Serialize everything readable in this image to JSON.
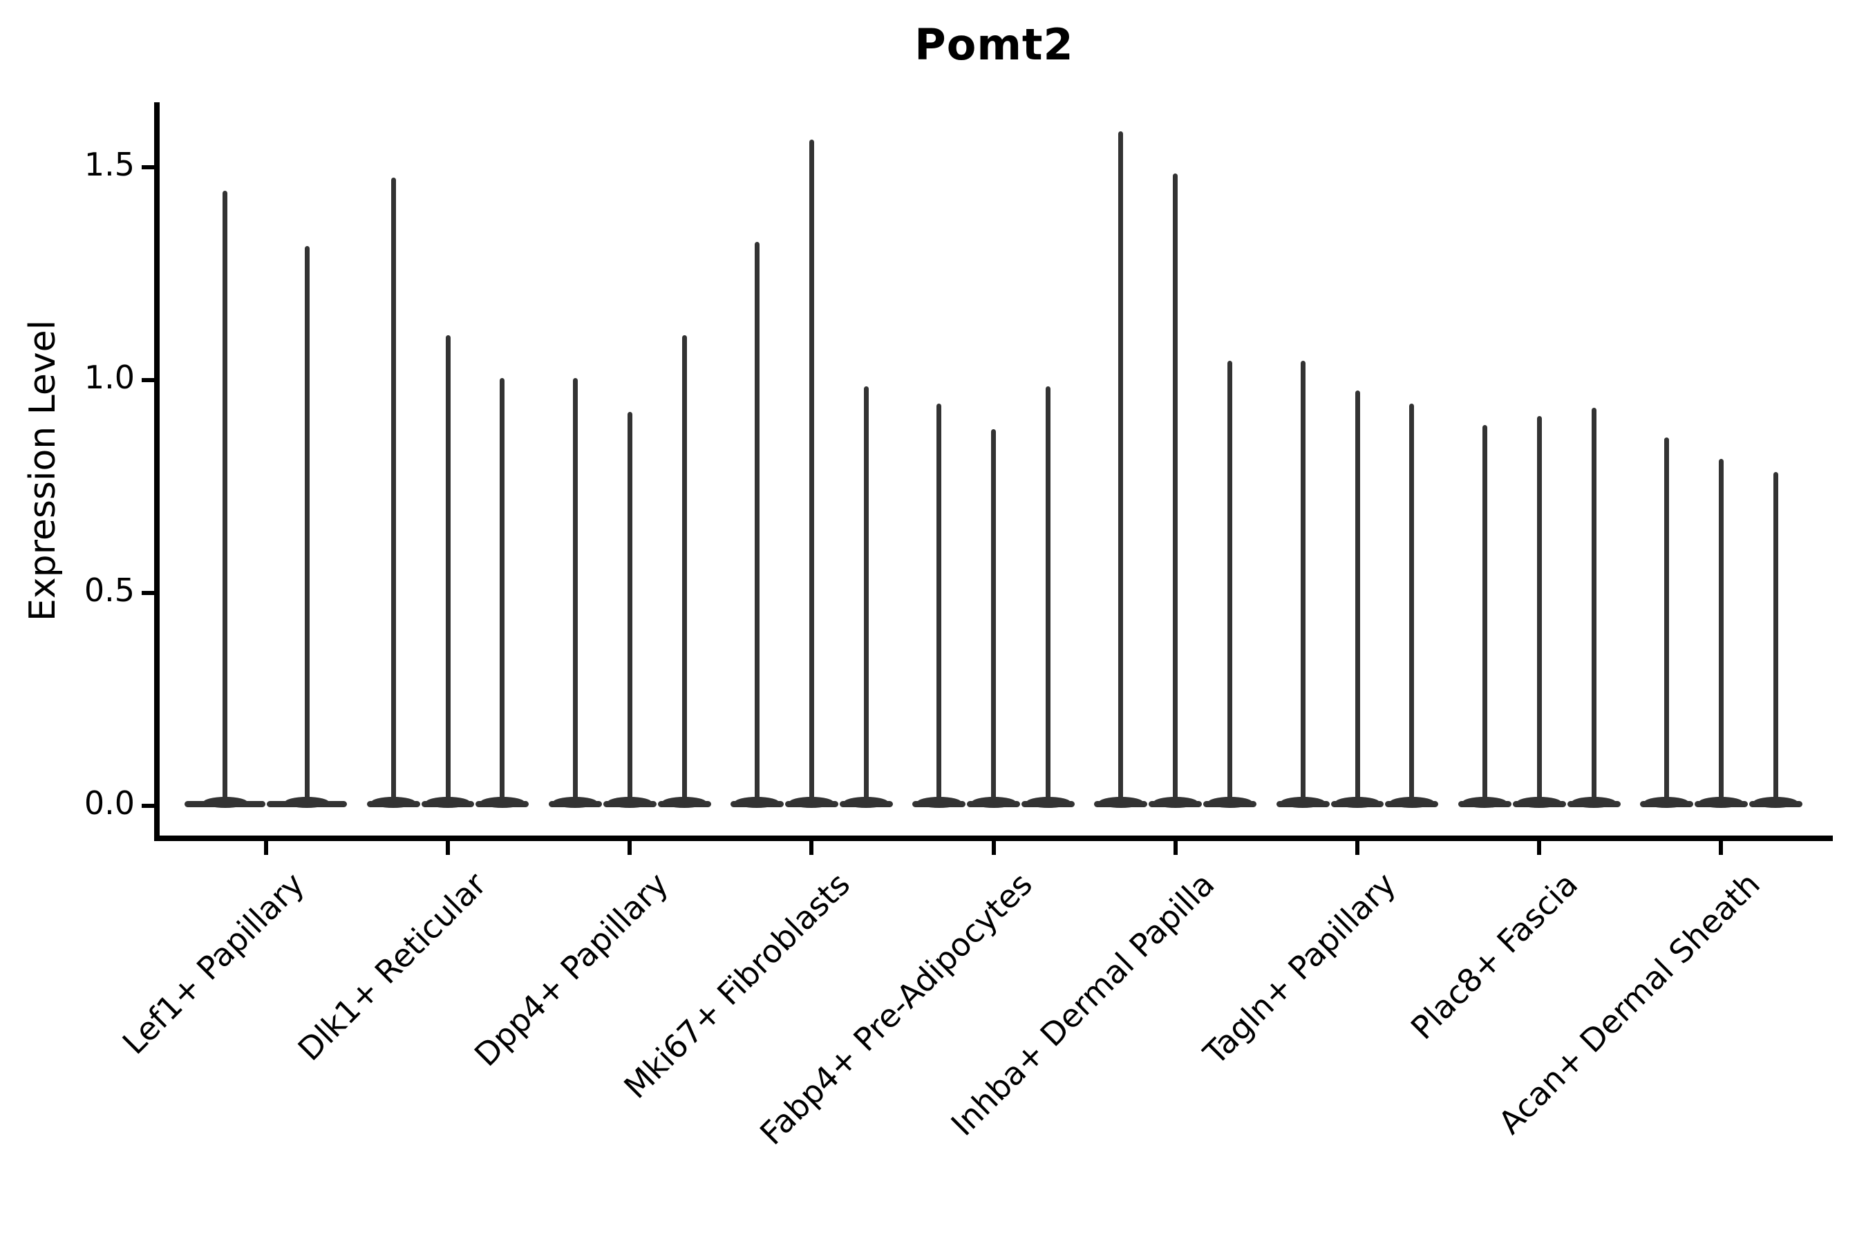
{
  "title": "Pomt2",
  "y_axis": {
    "label": "Expression Level",
    "tick_labels": [
      "1.5",
      "1.0",
      "0.5",
      "0.0"
    ]
  },
  "chart_data": {
    "type": "violin",
    "title": "Pomt2",
    "xlabel": "",
    "ylabel": "Expression Level",
    "yticks": [
      0.0,
      0.5,
      1.0,
      1.5
    ],
    "ylim": [
      -0.08,
      1.65
    ],
    "grid": false,
    "legend": "none",
    "violin_color": "#333333",
    "spine_color": "#000000",
    "note": "Each violin is collapsed at 0 (flat base) with a thin spike reaching the group's max expression value",
    "groups": [
      {
        "label": "Lef1+ Papillary",
        "spike_max_values": [
          1.44,
          1.31
        ]
      },
      {
        "label": "Dlk1+ Reticular",
        "spike_max_values": [
          1.47,
          1.1,
          1.0
        ]
      },
      {
        "label": "Dpp4+ Papillary",
        "spike_max_values": [
          1.0,
          0.92,
          1.1
        ]
      },
      {
        "label": "Mki67+ Fibroblasts",
        "spike_max_values": [
          1.32,
          1.56,
          0.98
        ]
      },
      {
        "label": "Fabp4+ Pre-Adipocytes",
        "spike_max_values": [
          0.94,
          0.88,
          0.98
        ]
      },
      {
        "label": "Inhba+ Dermal Papilla",
        "spike_max_values": [
          1.58,
          1.48,
          1.04
        ]
      },
      {
        "label": "Tagln+ Papillary",
        "spike_max_values": [
          1.04,
          0.97,
          0.94
        ]
      },
      {
        "label": "Plac8+ Fascia",
        "spike_max_values": [
          0.89,
          0.91,
          0.93
        ]
      },
      {
        "label": "Acan+ Dermal Sheath",
        "spike_max_values": [
          0.86,
          0.81,
          0.78
        ]
      }
    ]
  }
}
